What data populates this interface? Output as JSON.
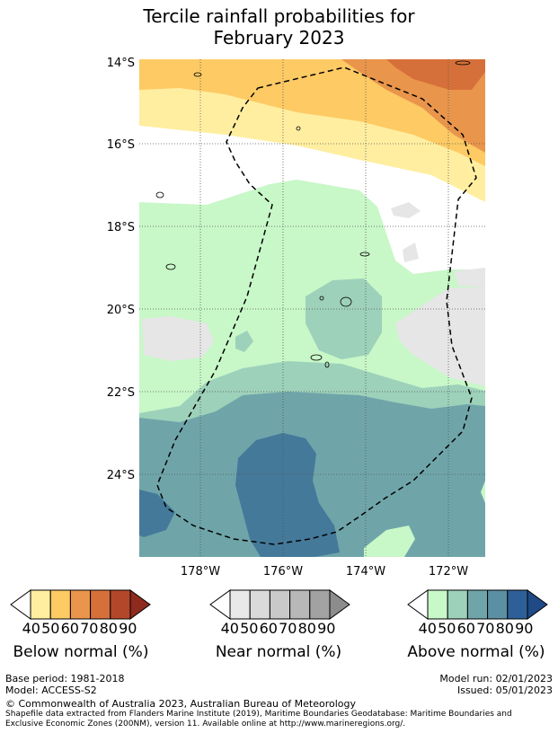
{
  "title_line1": "Tercile rainfall probabilities for",
  "title_line2": "February 2023",
  "axes": {
    "lat_labels": [
      "14°S",
      "16°S",
      "18°S",
      "20°S",
      "22°S",
      "24°S"
    ],
    "lon_labels": [
      "178°W",
      "176°W",
      "174°W",
      "172°W"
    ]
  },
  "legends": [
    {
      "title": "Below normal (%)",
      "ticks": [
        "40",
        "50",
        "60",
        "70",
        "80",
        "90"
      ],
      "colors": [
        "#ffeea0",
        "#fdca64",
        "#e9954b",
        "#d6703a",
        "#b3472a",
        "#8e2a1e"
      ]
    },
    {
      "title": "Near normal (%)",
      "ticks": [
        "40",
        "50",
        "60",
        "70",
        "80",
        "90"
      ],
      "colors": [
        "#e9e9e9",
        "#dadada",
        "#c9c9c9",
        "#b8b8b8",
        "#a2a2a2",
        "#8c8c8c"
      ]
    },
    {
      "title": "Above normal (%)",
      "ticks": [
        "40",
        "50",
        "60",
        "70",
        "80",
        "90"
      ],
      "colors": [
        "#c8f7c8",
        "#9dd1ba",
        "#6fa5a9",
        "#5a8fa4",
        "#2f5f98",
        "#1f4a86"
      ]
    }
  ],
  "footer": {
    "base_period": "Base period: 1981-2018",
    "model": "Model: ACCESS-S2",
    "model_run": "Model run: 02/01/2023",
    "issued": "Issued: 05/01/2023",
    "copyright": "© Commonwealth of Australia 2023, Australian Bureau of Meteorology",
    "shapefile1": "Shapefile data extracted from Flanders Marine Institute (2019), Maritime Boundaries Geodatabase: Maritime Boundaries and",
    "shapefile2": "Exclusive Economic Zones (200NM), version 11. Available online at http://www.marineregions.org/."
  },
  "colors": {
    "below_50": "#ffeea0",
    "below_60": "#fdca64",
    "below_70": "#e9954b",
    "below_80": "#d6703a",
    "near_40": "#e6e6e6",
    "above_40": "#c8f7c8",
    "above_50": "#9dd1ba",
    "above_60": "#6fa5a9",
    "above_70": "#44799a"
  }
}
